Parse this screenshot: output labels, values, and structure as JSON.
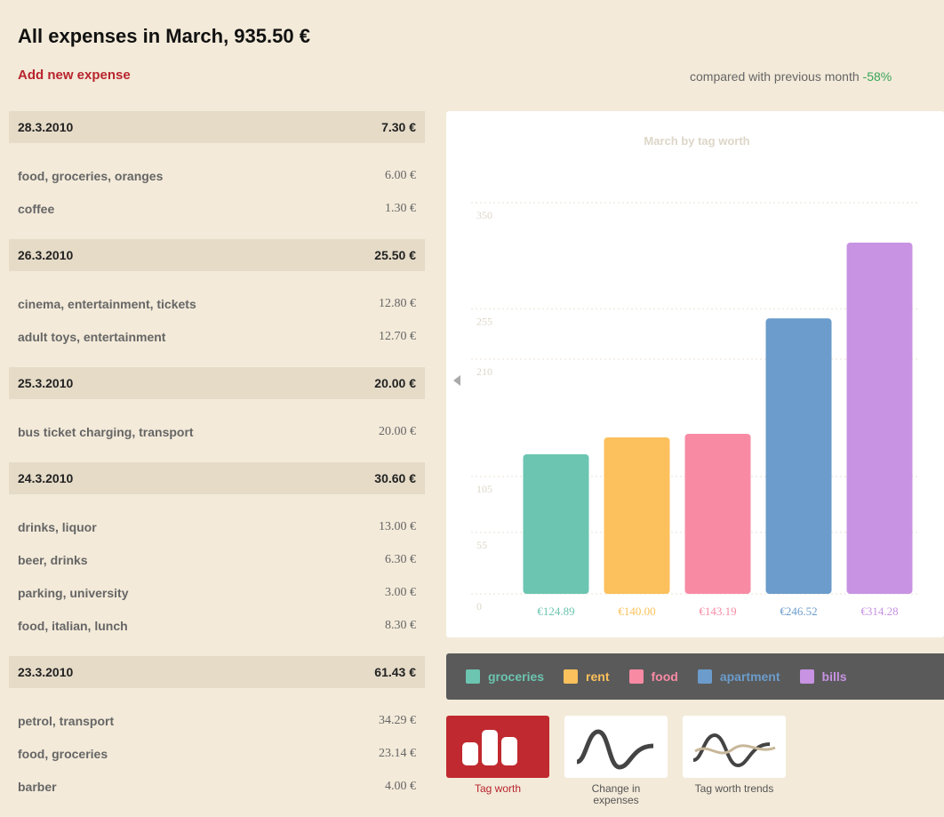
{
  "header": {
    "title": "All expenses in March, 935.50 €",
    "add_link": "Add new expense",
    "comparison": {
      "text": "compared with previous month",
      "change": "-58%"
    }
  },
  "days": [
    {
      "date": "28.3.2010",
      "total": "7.30 €",
      "items": [
        {
          "name": "food, groceries, oranges",
          "amount": "6.00 €"
        },
        {
          "name": "coffee",
          "amount": "1.30 €"
        }
      ]
    },
    {
      "date": "26.3.2010",
      "total": "25.50 €",
      "items": [
        {
          "name": "cinema, entertainment, tickets",
          "amount": "12.80 €"
        },
        {
          "name": "adult toys, entertainment",
          "amount": "12.70 €"
        }
      ]
    },
    {
      "date": "25.3.2010",
      "total": "20.00 €",
      "items": [
        {
          "name": "bus ticket charging, transport",
          "amount": "20.00 €"
        }
      ]
    },
    {
      "date": "24.3.2010",
      "total": "30.60 €",
      "items": [
        {
          "name": "drinks, liquor",
          "amount": "13.00 €"
        },
        {
          "name": "beer, drinks",
          "amount": "6.30 €"
        },
        {
          "name": "parking, university",
          "amount": "3.00 €"
        },
        {
          "name": "food, italian, lunch",
          "amount": "8.30 €"
        }
      ]
    },
    {
      "date": "23.3.2010",
      "total": "61.43 €",
      "items": [
        {
          "name": "petrol, transport",
          "amount": "34.29 €"
        },
        {
          "name": "food, groceries",
          "amount": "23.14 €"
        },
        {
          "name": "barber",
          "amount": "4.00 €"
        }
      ]
    }
  ],
  "chart": {
    "type": "bar",
    "title": "March by tag worth",
    "categories": [
      "groceries",
      "rent",
      "food",
      "apartment",
      "bills"
    ],
    "values": [
      124.89,
      140.0,
      143.19,
      246.52,
      314.28
    ],
    "value_labels": [
      "€124.89",
      "€140.00",
      "€143.19",
      "€246.52",
      "€314.28"
    ],
    "colors": [
      "#6cc5b0",
      "#fcc15c",
      "#f88aa4",
      "#6b9ccb",
      "#c893e3"
    ],
    "ylim": [
      0,
      350
    ],
    "yticks": [
      0,
      55,
      105,
      210,
      255,
      350
    ],
    "grid": true
  },
  "views": [
    {
      "label": "Tag worth",
      "active": true
    },
    {
      "label": "Change in expenses",
      "active": false
    },
    {
      "label": "Tag worth trends",
      "active": false
    }
  ]
}
